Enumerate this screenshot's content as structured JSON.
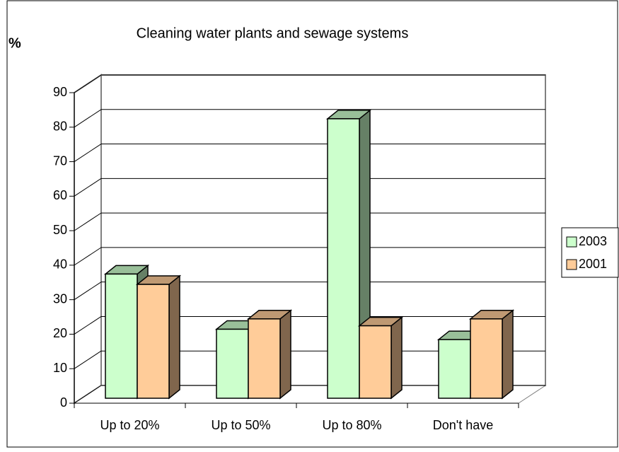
{
  "chart_data": {
    "type": "bar",
    "title": "Cleaning water plants and sewage systems",
    "y_label": "%",
    "categories": [
      "Up to 20%",
      "Up to 50%",
      "Up to 80%",
      "Don't have"
    ],
    "series": [
      {
        "name": "2003",
        "color": "#ccffcc",
        "values": [
          36,
          20,
          81,
          17
        ]
      },
      {
        "name": "2001",
        "color": "#ffcc99",
        "values": [
          33,
          23,
          21,
          23
        ]
      }
    ],
    "ylim": [
      0,
      90
    ],
    "yticks": [
      0,
      10,
      20,
      30,
      40,
      50,
      60,
      70,
      80,
      90
    ],
    "grid": true,
    "legend": "right"
  }
}
